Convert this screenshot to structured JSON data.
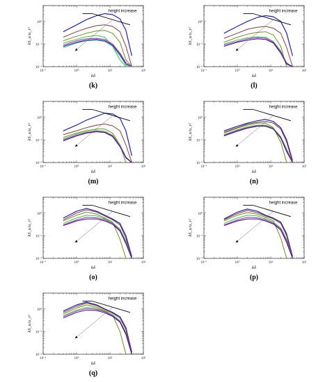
{
  "figure": {
    "panels": [
      {
        "id": "k",
        "label": "(k)"
      },
      {
        "id": "l",
        "label": "(l)"
      },
      {
        "id": "m",
        "label": "(m)"
      },
      {
        "id": "n",
        "label": "(n)"
      },
      {
        "id": "o",
        "label": "(o)"
      },
      {
        "id": "p",
        "label": "(p)"
      },
      {
        "id": "q",
        "label": "(q)"
      }
    ]
  },
  "chart_data": {
    "type": "line",
    "x_scale": "log",
    "y_scale": "log",
    "xlabel": "kδ",
    "ylabel": "kS_u/u_τ²",
    "xlim": [
      0.1,
      100
    ],
    "ylim": [
      0.01,
      5
    ],
    "x_ticks": [
      "10⁻¹",
      "10⁰",
      "10¹",
      "10²"
    ],
    "y_ticks": [
      "10⁻²",
      "10⁻¹",
      "10⁰"
    ],
    "annotation": "height increase",
    "legend": false,
    "grid": false,
    "series_colors": [
      "#1f1fb4",
      "#8b3a3a",
      "#6b8e23",
      "#32cd32",
      "#9932cc",
      "#4b0082",
      "#20b2aa",
      "#8a2be2",
      "#556b2f",
      "#00ced1"
    ],
    "panels": [
      {
        "id": "k",
        "series": [
          {
            "x": [
              0.4,
              1,
              2,
              4,
              7,
              12,
              20,
              30,
              45
            ],
            "y": [
              0.35,
              0.7,
              1.2,
              1.8,
              2.2,
              2.0,
              1.3,
              0.4,
              0.03
            ]
          },
          {
            "x": [
              0.4,
              1,
              2,
              4,
              7,
              12,
              20,
              30,
              45
            ],
            "y": [
              0.2,
              0.35,
              0.5,
              0.65,
              0.7,
              0.6,
              0.35,
              0.08,
              0.01
            ]
          },
          {
            "x": [
              0.4,
              1,
              2,
              4,
              7,
              12,
              20,
              30,
              45
            ],
            "y": [
              0.14,
              0.22,
              0.3,
              0.38,
              0.4,
              0.3,
              0.12,
              0.02,
              0.01
            ]
          },
          {
            "x": [
              0.4,
              1,
              2,
              4,
              7,
              12,
              20,
              30
            ],
            "y": [
              0.11,
              0.16,
              0.21,
              0.24,
              0.2,
              0.08,
              0.02,
              0.01
            ]
          },
          {
            "x": [
              0.4,
              1,
              2,
              4,
              7,
              12,
              20,
              30,
              45
            ],
            "y": [
              0.09,
              0.14,
              0.17,
              0.18,
              0.16,
              0.1,
              0.04,
              0.015,
              0.01
            ]
          },
          {
            "x": [
              0.4,
              1,
              2,
              4,
              7,
              12,
              20,
              30,
              45
            ],
            "y": [
              0.08,
              0.12,
              0.15,
              0.16,
              0.14,
              0.09,
              0.035,
              0.013,
              0.01
            ]
          },
          {
            "x": [
              0.4,
              1,
              2,
              4,
              7,
              12,
              20,
              30,
              45
            ],
            "y": [
              0.07,
              0.11,
              0.14,
              0.15,
              0.13,
              0.08,
              0.03,
              0.012,
              0.01
            ]
          }
        ]
      },
      {
        "id": "l",
        "series": [
          {
            "x": [
              0.4,
              1,
              2,
              4,
              7,
              12,
              20,
              30,
              45
            ],
            "y": [
              0.3,
              0.6,
              1.0,
              1.5,
              1.8,
              1.6,
              1.0,
              0.3,
              0.03
            ]
          },
          {
            "x": [
              0.4,
              1,
              2,
              4,
              7,
              12,
              20,
              30,
              45
            ],
            "y": [
              0.18,
              0.3,
              0.45,
              0.55,
              0.6,
              0.5,
              0.3,
              0.07,
              0.01
            ]
          },
          {
            "x": [
              0.4,
              1,
              2,
              4,
              7,
              12,
              20,
              30
            ],
            "y": [
              0.12,
              0.2,
              0.27,
              0.33,
              0.35,
              0.25,
              0.08,
              0.01
            ]
          },
          {
            "x": [
              0.4,
              1,
              2,
              4,
              7,
              12,
              20,
              30,
              45
            ],
            "y": [
              0.1,
              0.15,
              0.19,
              0.21,
              0.2,
              0.13,
              0.05,
              0.015,
              0.01
            ]
          },
          {
            "x": [
              0.4,
              1,
              2,
              4,
              7,
              12,
              20,
              30,
              45
            ],
            "y": [
              0.09,
              0.13,
              0.17,
              0.19,
              0.18,
              0.12,
              0.045,
              0.014,
              0.01
            ]
          },
          {
            "x": [
              0.4,
              1,
              2,
              4,
              7,
              12,
              20,
              30,
              45
            ],
            "y": [
              0.08,
              0.12,
              0.15,
              0.17,
              0.16,
              0.11,
              0.04,
              0.013,
              0.01
            ]
          }
        ]
      },
      {
        "id": "m",
        "series": [
          {
            "x": [
              0.4,
              1,
              2,
              4,
              7,
              12,
              20,
              30,
              45
            ],
            "y": [
              0.25,
              0.45,
              0.75,
              1.1,
              1.5,
              1.4,
              0.9,
              0.25,
              0.02
            ]
          },
          {
            "x": [
              0.4,
              1,
              2,
              4,
              7,
              12,
              20,
              30,
              45
            ],
            "y": [
              0.17,
              0.25,
              0.35,
              0.45,
              0.5,
              0.42,
              0.25,
              0.06,
              0.01
            ]
          },
          {
            "x": [
              0.4,
              1,
              2,
              4,
              7,
              12,
              20,
              30
            ],
            "y": [
              0.13,
              0.2,
              0.26,
              0.3,
              0.3,
              0.2,
              0.06,
              0.01
            ]
          },
          {
            "x": [
              0.4,
              1,
              2,
              4,
              7,
              12,
              20,
              30,
              45
            ],
            "y": [
              0.11,
              0.18,
              0.23,
              0.26,
              0.24,
              0.16,
              0.06,
              0.018,
              0.01
            ]
          },
          {
            "x": [
              0.4,
              1,
              2,
              4,
              7,
              12,
              20,
              30,
              45
            ],
            "y": [
              0.1,
              0.16,
              0.21,
              0.24,
              0.22,
              0.15,
              0.055,
              0.017,
              0.01
            ]
          },
          {
            "x": [
              0.4,
              1,
              2,
              4,
              7,
              12,
              20,
              30,
              45
            ],
            "y": [
              0.09,
              0.15,
              0.2,
              0.23,
              0.21,
              0.14,
              0.05,
              0.016,
              0.01
            ]
          }
        ]
      },
      {
        "id": "n",
        "series": [
          {
            "x": [
              0.4,
              1,
              2,
              4,
              7,
              12,
              20,
              30,
              45
            ],
            "y": [
              0.25,
              0.4,
              0.55,
              0.7,
              0.8,
              0.65,
              0.35,
              0.1,
              0.012
            ]
          },
          {
            "x": [
              0.4,
              1,
              2,
              4,
              7,
              12,
              20,
              30,
              45
            ],
            "y": [
              0.22,
              0.35,
              0.5,
              0.6,
              0.65,
              0.55,
              0.3,
              0.08,
              0.01
            ]
          },
          {
            "x": [
              0.4,
              1,
              2,
              4,
              7,
              12,
              20,
              30
            ],
            "y": [
              0.2,
              0.33,
              0.45,
              0.55,
              0.55,
              0.35,
              0.08,
              0.01
            ]
          },
          {
            "x": [
              0.4,
              1,
              2,
              4,
              7,
              12,
              20,
              30,
              45
            ],
            "y": [
              0.17,
              0.28,
              0.38,
              0.45,
              0.45,
              0.33,
              0.14,
              0.04,
              0.01
            ]
          },
          {
            "x": [
              0.4,
              1,
              2,
              4,
              7,
              12,
              20,
              30,
              45
            ],
            "y": [
              0.16,
              0.26,
              0.35,
              0.42,
              0.42,
              0.31,
              0.13,
              0.035,
              0.01
            ]
          },
          {
            "x": [
              0.4,
              1,
              2,
              4,
              7,
              12,
              20,
              30,
              45
            ],
            "y": [
              0.15,
              0.24,
              0.33,
              0.4,
              0.4,
              0.3,
              0.12,
              0.03,
              0.01
            ]
          }
        ]
      },
      {
        "id": "o",
        "series": [
          {
            "x": [
              0.4,
              1,
              2,
              4,
              7,
              12,
              20,
              30,
              45
            ],
            "y": [
              0.6,
              1.2,
              1.6,
              1.2,
              0.8,
              0.55,
              0.35,
              0.1,
              0.012
            ]
          },
          {
            "x": [
              0.4,
              1,
              2,
              4,
              7,
              12,
              20,
              30,
              45
            ],
            "y": [
              0.5,
              1.0,
              1.4,
              1.1,
              0.75,
              0.5,
              0.3,
              0.08,
              0.01
            ]
          },
          {
            "x": [
              0.4,
              1,
              2,
              4,
              7,
              12,
              20,
              30
            ],
            "y": [
              0.45,
              0.8,
              1.1,
              0.9,
              0.6,
              0.4,
              0.07,
              0.01
            ]
          },
          {
            "x": [
              0.4,
              1,
              2,
              4,
              7,
              12,
              20,
              30,
              45
            ],
            "y": [
              0.35,
              0.6,
              0.8,
              0.75,
              0.55,
              0.38,
              0.2,
              0.06,
              0.01
            ]
          },
          {
            "x": [
              0.4,
              1,
              2,
              4,
              7,
              12,
              20,
              30,
              45
            ],
            "y": [
              0.3,
              0.5,
              0.65,
              0.62,
              0.5,
              0.35,
              0.18,
              0.05,
              0.01
            ]
          },
          {
            "x": [
              0.4,
              1,
              2,
              4,
              7,
              12,
              20,
              30,
              45
            ],
            "y": [
              0.28,
              0.45,
              0.55,
              0.55,
              0.45,
              0.32,
              0.16,
              0.045,
              0.01
            ]
          }
        ]
      },
      {
        "id": "p",
        "series": [
          {
            "x": [
              0.4,
              1,
              2,
              4,
              7,
              12,
              20,
              30,
              45
            ],
            "y": [
              0.55,
              1.1,
              1.5,
              1.2,
              0.8,
              0.6,
              0.4,
              0.12,
              0.012
            ]
          },
          {
            "x": [
              0.4,
              1,
              2,
              4,
              7,
              12,
              20,
              30,
              45
            ],
            "y": [
              0.5,
              0.95,
              1.3,
              1.05,
              0.75,
              0.55,
              0.35,
              0.1,
              0.01
            ]
          },
          {
            "x": [
              0.4,
              1,
              2,
              4,
              7,
              12,
              20,
              30
            ],
            "y": [
              0.45,
              0.8,
              1.05,
              0.9,
              0.65,
              0.45,
              0.08,
              0.01
            ]
          },
          {
            "x": [
              0.4,
              1,
              2,
              4,
              7,
              12,
              20,
              30,
              45
            ],
            "y": [
              0.35,
              0.6,
              0.8,
              0.75,
              0.55,
              0.4,
              0.22,
              0.07,
              0.01
            ]
          },
          {
            "x": [
              0.4,
              1,
              2,
              4,
              7,
              12,
              20,
              30,
              45
            ],
            "y": [
              0.3,
              0.5,
              0.65,
              0.62,
              0.5,
              0.36,
              0.2,
              0.06,
              0.01
            ]
          },
          {
            "x": [
              0.4,
              1,
              2,
              4,
              7,
              12,
              20,
              30,
              45
            ],
            "y": [
              0.28,
              0.45,
              0.55,
              0.55,
              0.45,
              0.33,
              0.18,
              0.05,
              0.01
            ]
          }
        ]
      },
      {
        "id": "q",
        "series": [
          {
            "x": [
              0.4,
              1,
              2,
              4,
              7,
              12,
              20,
              30,
              45
            ],
            "y": [
              0.8,
              1.5,
              2.0,
              1.5,
              1.0,
              0.7,
              0.45,
              0.15,
              0.012
            ]
          },
          {
            "x": [
              0.4,
              1,
              2,
              4,
              7,
              12,
              20,
              30,
              45
            ],
            "y": [
              0.7,
              1.3,
              1.8,
              1.4,
              0.95,
              0.65,
              0.4,
              0.12,
              0.01
            ]
          },
          {
            "x": [
              0.4,
              1,
              2,
              4,
              7,
              12,
              20,
              30
            ],
            "y": [
              0.6,
              1.1,
              1.5,
              1.2,
              0.85,
              0.55,
              0.1,
              0.01
            ]
          },
          {
            "x": [
              0.4,
              1,
              2,
              4,
              7,
              12,
              20,
              30,
              45
            ],
            "y": [
              0.5,
              0.9,
              1.2,
              1.05,
              0.8,
              0.55,
              0.3,
              0.09,
              0.01
            ]
          },
          {
            "x": [
              0.4,
              1,
              2,
              4,
              7,
              12,
              20,
              30,
              45
            ],
            "y": [
              0.45,
              0.8,
              1.05,
              0.95,
              0.75,
              0.5,
              0.28,
              0.08,
              0.01
            ]
          },
          {
            "x": [
              0.4,
              1,
              2,
              4,
              7,
              12,
              20,
              30,
              45
            ],
            "y": [
              0.4,
              0.7,
              0.9,
              0.85,
              0.68,
              0.47,
              0.26,
              0.075,
              0.01
            ]
          }
        ]
      }
    ]
  }
}
